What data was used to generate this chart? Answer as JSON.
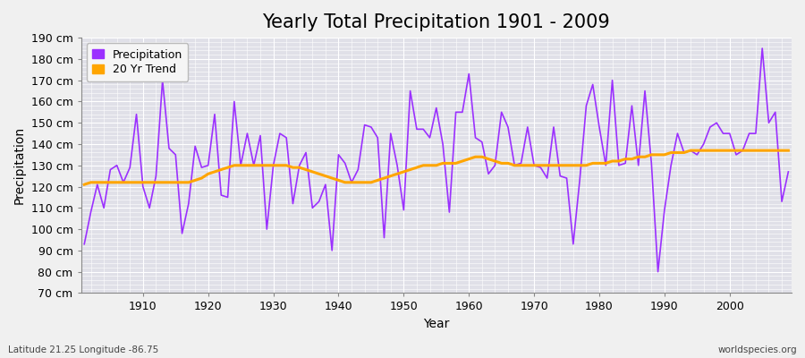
{
  "title": "Yearly Total Precipitation 1901 - 2009",
  "xlabel": "Year",
  "ylabel": "Precipitation",
  "subtitle_left": "Latitude 21.25 Longitude -86.75",
  "subtitle_right": "worldspecies.org",
  "ylim": [
    70,
    190
  ],
  "ytick_step": 10,
  "years": [
    1901,
    1902,
    1903,
    1904,
    1905,
    1906,
    1907,
    1908,
    1909,
    1910,
    1911,
    1912,
    1913,
    1914,
    1915,
    1916,
    1917,
    1918,
    1919,
    1920,
    1921,
    1922,
    1923,
    1924,
    1925,
    1926,
    1927,
    1928,
    1929,
    1930,
    1931,
    1932,
    1933,
    1934,
    1935,
    1936,
    1937,
    1938,
    1939,
    1940,
    1941,
    1942,
    1943,
    1944,
    1945,
    1946,
    1947,
    1948,
    1949,
    1950,
    1951,
    1952,
    1953,
    1954,
    1955,
    1956,
    1957,
    1958,
    1959,
    1960,
    1961,
    1962,
    1963,
    1964,
    1965,
    1966,
    1967,
    1968,
    1969,
    1970,
    1971,
    1972,
    1973,
    1974,
    1975,
    1976,
    1977,
    1978,
    1979,
    1980,
    1981,
    1982,
    1983,
    1984,
    1985,
    1986,
    1987,
    1988,
    1989,
    1990,
    1991,
    1992,
    1993,
    1994,
    1995,
    1996,
    1997,
    1998,
    1999,
    2000,
    2001,
    2002,
    2003,
    2004,
    2005,
    2006,
    2007,
    2008,
    2009
  ],
  "precipitation": [
    93,
    108,
    121,
    110,
    128,
    130,
    122,
    129,
    154,
    120,
    110,
    125,
    170,
    138,
    135,
    98,
    112,
    139,
    129,
    130,
    154,
    116,
    115,
    160,
    130,
    145,
    130,
    144,
    100,
    130,
    145,
    143,
    112,
    130,
    136,
    110,
    113,
    121,
    90,
    135,
    131,
    122,
    128,
    149,
    148,
    143,
    96,
    145,
    130,
    109,
    165,
    147,
    147,
    143,
    157,
    140,
    108,
    155,
    155,
    173,
    143,
    141,
    126,
    130,
    155,
    148,
    130,
    131,
    148,
    130,
    129,
    124,
    148,
    125,
    124,
    93,
    123,
    158,
    168,
    148,
    130,
    170,
    130,
    131,
    158,
    130,
    165,
    131,
    80,
    109,
    130,
    145,
    136,
    137,
    135,
    140,
    148,
    150,
    145,
    145,
    135,
    137,
    145,
    145,
    185,
    150,
    155,
    113,
    127
  ],
  "trend": [
    121,
    122,
    122,
    122,
    122,
    122,
    122,
    122,
    122,
    122,
    122,
    122,
    122,
    122,
    122,
    122,
    122,
    123,
    124,
    126,
    127,
    128,
    129,
    130,
    130,
    130,
    130,
    130,
    130,
    130,
    130,
    130,
    129,
    129,
    128,
    127,
    126,
    125,
    124,
    123,
    122,
    122,
    122,
    122,
    122,
    123,
    124,
    125,
    126,
    127,
    128,
    129,
    130,
    130,
    130,
    131,
    131,
    131,
    132,
    133,
    134,
    134,
    133,
    132,
    131,
    131,
    130,
    130,
    130,
    130,
    130,
    130,
    130,
    130,
    130,
    130,
    130,
    130,
    131,
    131,
    131,
    132,
    132,
    133,
    133,
    134,
    134,
    135,
    135,
    135,
    136,
    136,
    136,
    137,
    137,
    137,
    137,
    137,
    137,
    137,
    137,
    137,
    137,
    137,
    137,
    137,
    137,
    137,
    137
  ],
  "precip_color": "#9B30FF",
  "trend_color": "#FFA500",
  "bg_color": "#F0F0F0",
  "plot_bg_color": "#E0E0E8",
  "grid_color": "#FFFFFF",
  "title_fontsize": 15,
  "label_fontsize": 10,
  "tick_fontsize": 9,
  "xticks": [
    1910,
    1920,
    1930,
    1940,
    1950,
    1960,
    1970,
    1980,
    1990,
    2000
  ],
  "figwidth": 9.0,
  "figheight": 4.0,
  "dpi": 100
}
